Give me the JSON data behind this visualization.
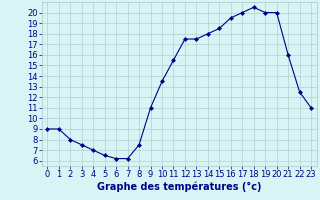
{
  "hours": [
    0,
    1,
    2,
    3,
    4,
    5,
    6,
    7,
    8,
    9,
    10,
    11,
    12,
    13,
    14,
    15,
    16,
    17,
    18,
    19,
    20,
    21,
    22,
    23
  ],
  "temps": [
    9,
    9,
    8,
    7.5,
    7,
    6.5,
    6.2,
    6.2,
    7.5,
    11,
    13.5,
    15.5,
    17.5,
    17.5,
    18,
    18.5,
    19.5,
    20,
    20.5,
    20,
    20,
    16,
    12.5,
    11
  ],
  "line_color": "#00008B",
  "marker": "D",
  "marker_size": 2.0,
  "bg_color": "#d8f4f4",
  "grid_color": "#a8c8c8",
  "xlabel": "Graphe des températures (°c)",
  "xlabel_color": "#00008B",
  "xlabel_fontsize": 7,
  "tick_color": "#00008B",
  "tick_fontsize": 6,
  "ylim": [
    5.5,
    21.0
  ],
  "xlim": [
    -0.5,
    23.5
  ],
  "yticks": [
    6,
    7,
    8,
    9,
    10,
    11,
    12,
    13,
    14,
    15,
    16,
    17,
    18,
    19,
    20
  ],
  "xticks": [
    0,
    1,
    2,
    3,
    4,
    5,
    6,
    7,
    8,
    9,
    10,
    11,
    12,
    13,
    14,
    15,
    16,
    17,
    18,
    19,
    20,
    21,
    22,
    23
  ]
}
